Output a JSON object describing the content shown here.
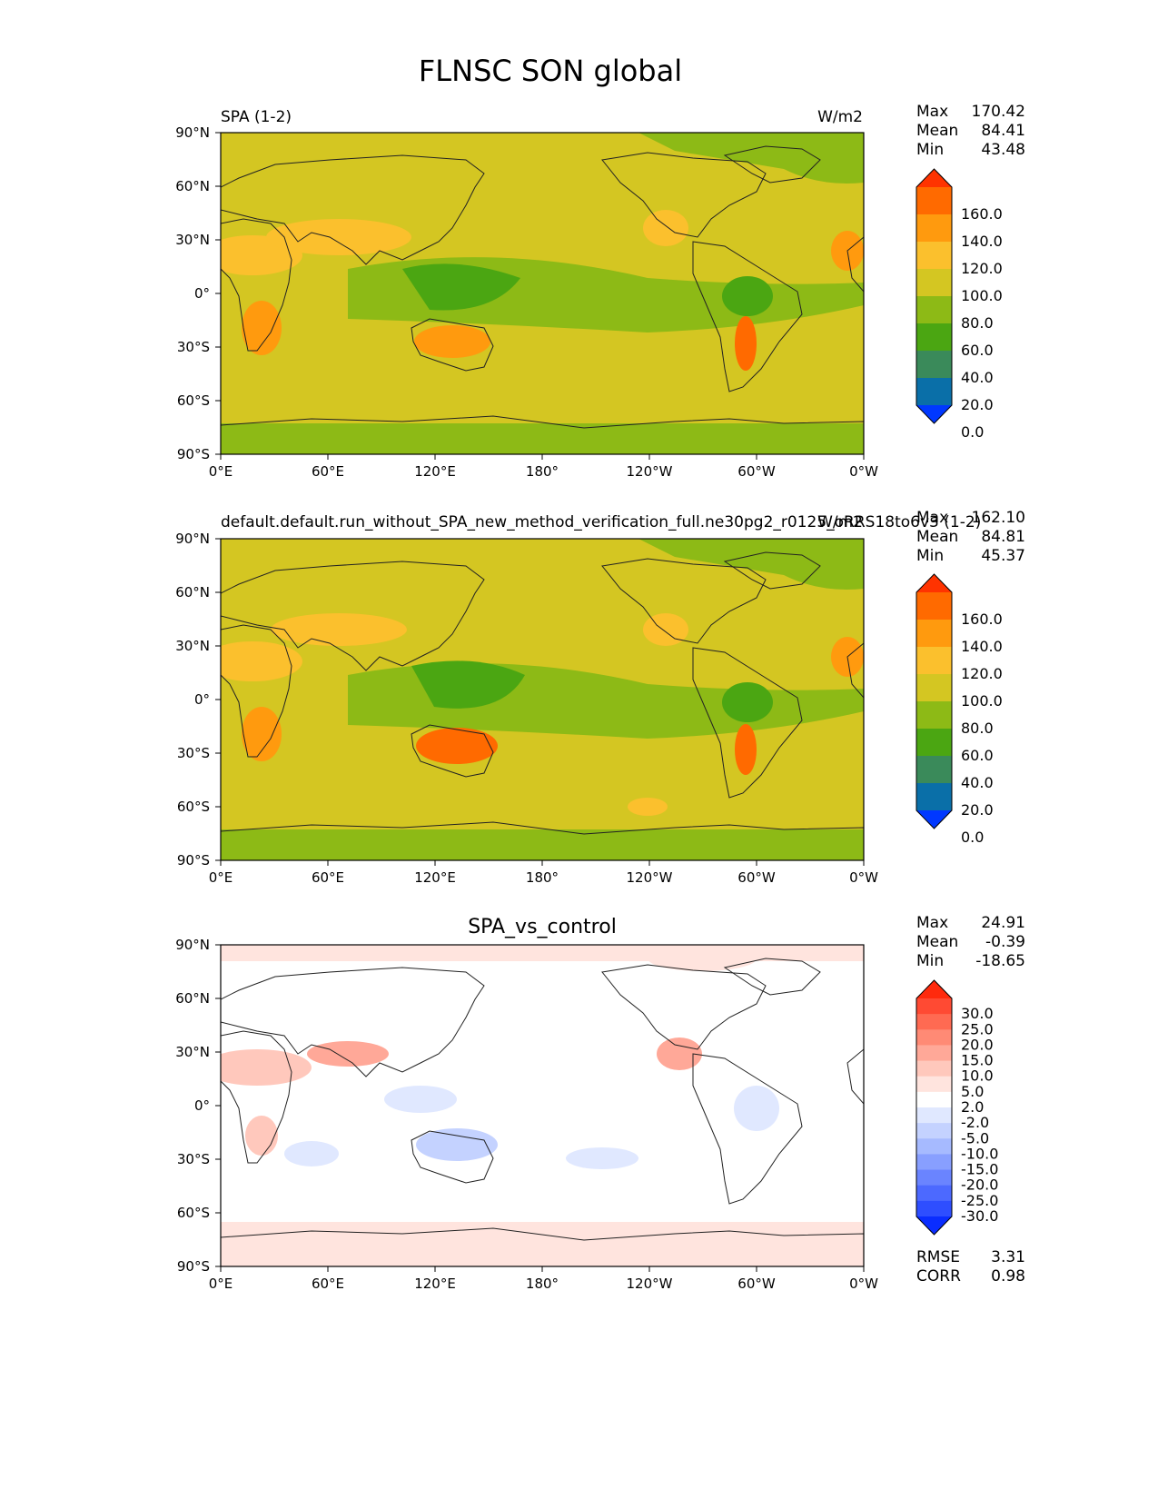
{
  "figure_title": "FLNSC SON global",
  "chart_data": [
    {
      "type": "heatmap",
      "panel": "test",
      "title_left": "SPA (1-2)",
      "title_right": "W/m2",
      "stats": {
        "Max": "170.42",
        "Mean": "84.41",
        "Min": "43.48"
      },
      "xticks": [
        "0°E",
        "60°E",
        "120°E",
        "180°",
        "120°W",
        "60°W",
        "0°W"
      ],
      "yticks": [
        "90°N",
        "60°N",
        "30°N",
        "0°",
        "30°S",
        "60°S",
        "90°S"
      ],
      "colorbar": {
        "labels": [
          "160.0",
          "140.0",
          "120.0",
          "100.0",
          "80.0",
          "60.0",
          "40.0",
          "20.0",
          "0.0"
        ],
        "colors": [
          "#ff3300",
          "#ff6a00",
          "#ff9a0e",
          "#fbc02d",
          "#d4c622",
          "#8dba16",
          "#4ba612",
          "#3a8a5a",
          "#0a6fa8",
          "#0038ff"
        ]
      }
    },
    {
      "type": "heatmap",
      "panel": "reference",
      "title_left": "default.default.run_without_SPA_new_method_verification_full.ne30pg2_r0125_oRRS18to6v3 (1-2)",
      "title_right": "W/m2",
      "stats": {
        "Max": "162.10",
        "Mean": "84.81",
        "Min": "45.37"
      },
      "xticks": [
        "0°E",
        "60°E",
        "120°E",
        "180°",
        "120°W",
        "60°W",
        "0°W"
      ],
      "yticks": [
        "90°N",
        "60°N",
        "30°N",
        "0°",
        "30°S",
        "60°S",
        "90°S"
      ],
      "colorbar": {
        "labels": [
          "160.0",
          "140.0",
          "120.0",
          "100.0",
          "80.0",
          "60.0",
          "40.0",
          "20.0",
          "0.0"
        ],
        "colors": [
          "#ff3300",
          "#ff6a00",
          "#ff9a0e",
          "#fbc02d",
          "#d4c622",
          "#8dba16",
          "#4ba612",
          "#3a8a5a",
          "#0a6fa8",
          "#0038ff"
        ]
      }
    },
    {
      "type": "heatmap",
      "panel": "difference",
      "title_center": "SPA_vs_control",
      "stats": {
        "Max": "24.91",
        "Mean": "-0.39",
        "Min": "-18.65"
      },
      "metrics": {
        "RMSE": "3.31",
        "CORR": "0.98"
      },
      "xticks": [
        "0°E",
        "60°E",
        "120°E",
        "180°",
        "120°W",
        "60°W",
        "0°W"
      ],
      "yticks": [
        "90°N",
        "60°N",
        "30°N",
        "0°",
        "30°S",
        "60°S",
        "90°S"
      ],
      "colorbar": {
        "labels": [
          "30.0",
          "25.0",
          "20.0",
          "15.0",
          "10.0",
          "5.0",
          "2.0",
          "-2.0",
          "-5.0",
          "-10.0",
          "-15.0",
          "-20.0",
          "-25.0",
          "-30.0"
        ],
        "colors": [
          "#ff2a0d",
          "#ff4a33",
          "#ff6a52",
          "#ff8a75",
          "#ffa898",
          "#ffc8bc",
          "#ffe4de",
          "#ffffff",
          "#e0e8ff",
          "#c4d2ff",
          "#a6baff",
          "#889fff",
          "#6a84ff",
          "#4c69ff",
          "#2e4eff",
          "#0a2dff"
        ]
      }
    }
  ]
}
